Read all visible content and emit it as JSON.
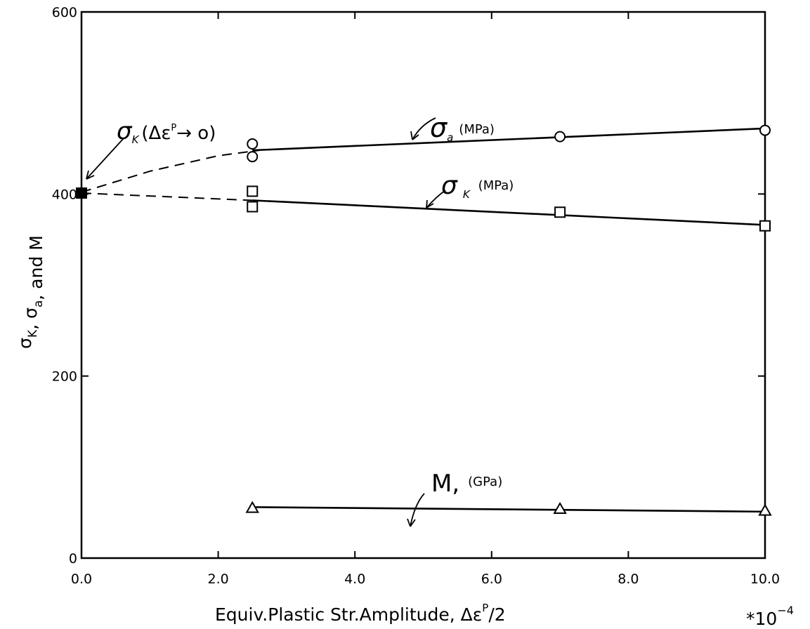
{
  "chart_data": {
    "type": "line",
    "title": "",
    "xlabel": "Equiv.Plastic Str.Amplitude, Δε",
    "xlabel_superscript": "P",
    "xlabel_suffix": "/2",
    "x_multiplier": "*10",
    "x_multiplier_exponent": "−4",
    "ylabel": "σK, σa, and M",
    "ylabel_parts": [
      {
        "text": "σ"
      },
      {
        "text": "K",
        "sub": true
      },
      {
        "text": ", σ"
      },
      {
        "text": "a",
        "sub": true
      },
      {
        "text": ", and M"
      }
    ],
    "xlim": [
      0,
      10
    ],
    "ylim": [
      0,
      600
    ],
    "x_ticks": [
      0,
      2,
      4,
      6,
      8,
      10
    ],
    "x_tick_labels": [
      "0.0",
      "2.0",
      "4.0",
      "6.0",
      "8.0",
      "10.0"
    ],
    "y_ticks": [
      0,
      200,
      400,
      600
    ],
    "y_tick_labels": [
      "0",
      "200",
      "400",
      "600"
    ],
    "grid": false,
    "series": [
      {
        "label": "σa (MPa)",
        "marker": "circle",
        "points": [
          {
            "x": 2.5,
            "y": 455
          },
          {
            "x": 2.5,
            "y": 441
          },
          {
            "x": 7.0,
            "y": 463
          },
          {
            "x": 10.0,
            "y": 470
          }
        ],
        "fit_solid": [
          {
            "x": 2.5,
            "y": 448
          },
          {
            "x": 10.0,
            "y": 472
          }
        ],
        "fit_dashed": [
          {
            "x": 0.0,
            "y": 402
          },
          {
            "x": 1.0,
            "y": 425
          },
          {
            "x": 2.0,
            "y": 442
          },
          {
            "x": 2.6,
            "y": 448
          }
        ]
      },
      {
        "label": "σK (MPa)",
        "marker": "square",
        "points": [
          {
            "x": 2.5,
            "y": 403
          },
          {
            "x": 2.5,
            "y": 386
          },
          {
            "x": 7.0,
            "y": 380
          },
          {
            "x": 10.0,
            "y": 365
          }
        ],
        "fit_solid": [
          {
            "x": 2.5,
            "y": 393
          },
          {
            "x": 10.0,
            "y": 366
          }
        ],
        "fit_dashed": [
          {
            "x": 0.0,
            "y": 401
          },
          {
            "x": 2.5,
            "y": 393
          }
        ]
      },
      {
        "label": "M, (GPa)",
        "marker": "triangle",
        "points": [
          {
            "x": 2.5,
            "y": 55
          },
          {
            "x": 7.0,
            "y": 54
          },
          {
            "x": 10.0,
            "y": 52
          }
        ],
        "fit_solid": [
          {
            "x": 2.5,
            "y": 56
          },
          {
            "x": 10.0,
            "y": 51
          }
        ],
        "fit_dashed": []
      },
      {
        "label": "σK (Δε^P → 0)",
        "marker": "filled-square",
        "points": [
          {
            "x": 0.0,
            "y": 401
          }
        ]
      }
    ],
    "annotations": [
      {
        "text": "σ",
        "sub": "a",
        "unit": "(MPa)"
      },
      {
        "text": "σ",
        "sub": "K",
        "unit": "(MPa)"
      },
      {
        "text": "M,",
        "sub": "",
        "unit": "(GPa)"
      },
      {
        "text": "σ",
        "sub": "K",
        "unit": "(Δε",
        "unit_sup": "P",
        "unit_tail": "→ o)"
      }
    ]
  }
}
